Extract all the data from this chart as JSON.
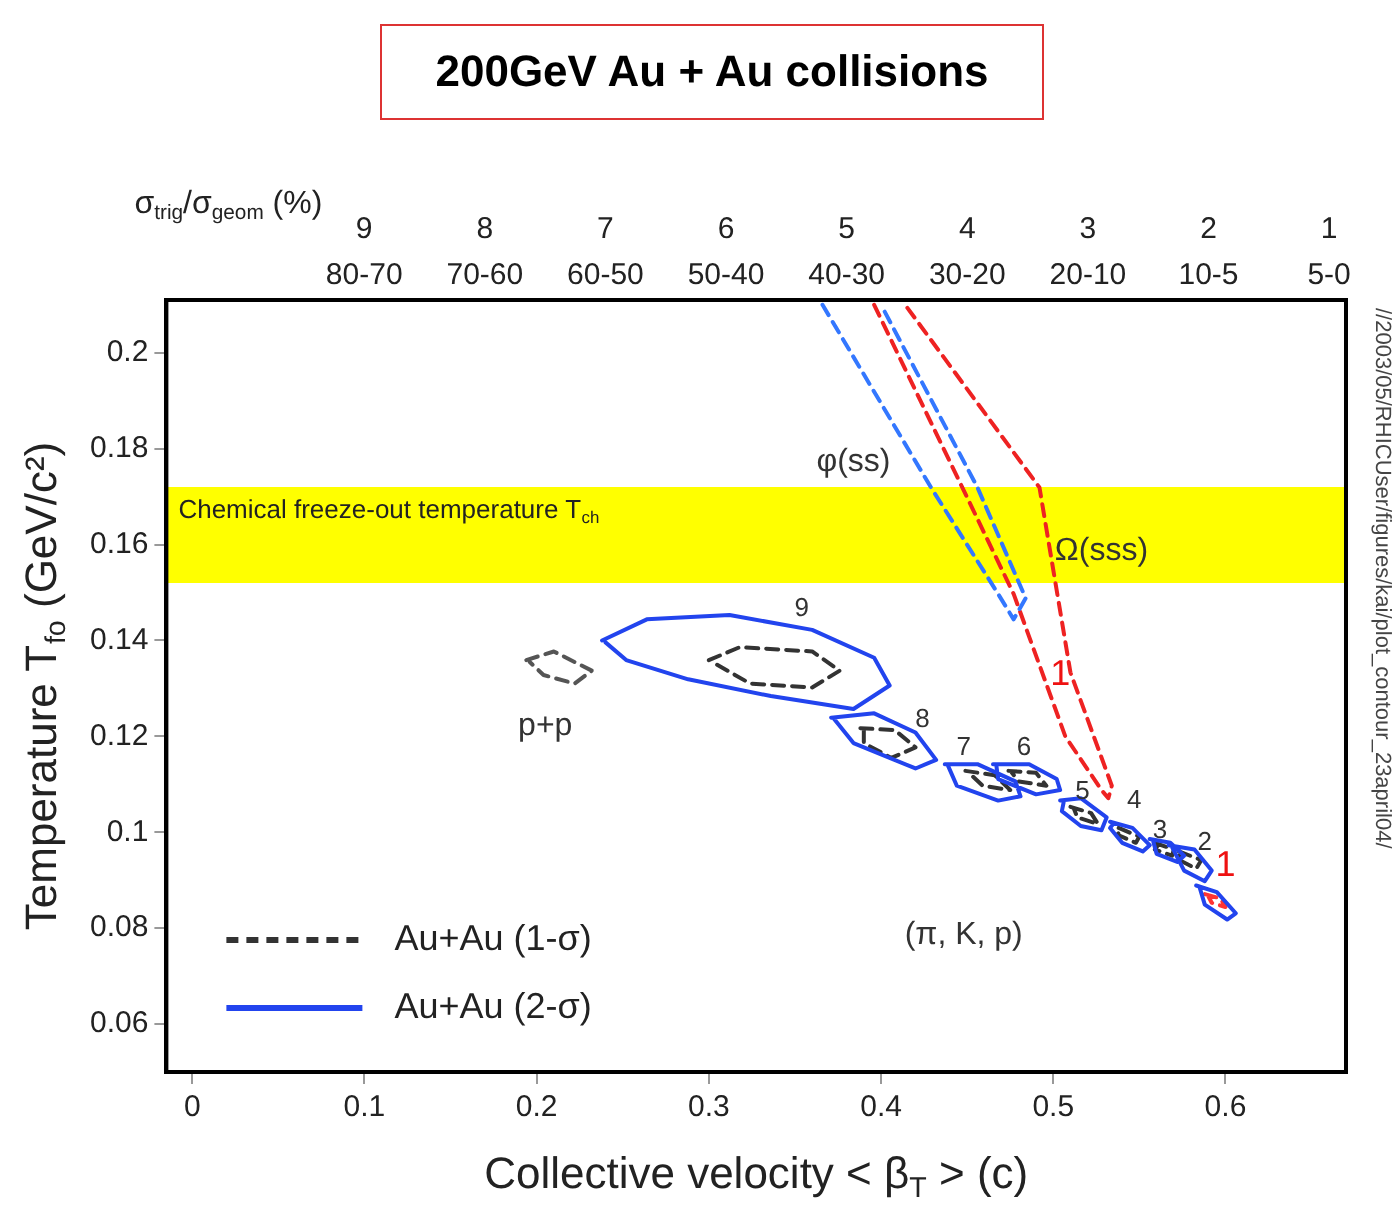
{
  "chart_data": {
    "type": "line",
    "title": "200GeV Au + Au collisions",
    "xlabel": "Collective velocity < β$_{T}$ > (c)",
    "ylabel": "Temperature T$_{fo}$ (GeV/c²)",
    "x2label": "σ$_{trig}$/σ$_{geom}$ (%)",
    "xlim": [
      -0.015,
      0.67
    ],
    "xticks": [
      0,
      0.1,
      0.2,
      0.3,
      0.4,
      0.5,
      0.6
    ],
    "ylim": [
      0.05,
      0.211
    ],
    "yticks": [
      0.06,
      0.08,
      0.1,
      0.12,
      0.14,
      0.16,
      0.18,
      0.2
    ],
    "x2lim": [
      10.64,
      0.86
    ],
    "x2ticks": [
      9,
      8,
      7,
      6,
      5,
      4,
      3,
      2,
      1
    ],
    "grid": false,
    "legend": "bottom left",
    "line_style": "solid",
    "bands": [
      {
        "axis": "y",
        "from": 0.152,
        "to": 0.172,
        "label": "Chemical freeze-out temperature T$_{ch}$",
        "color": "#ffff00"
      }
    ],
    "series": [
      {
        "name": "Au+Au (2-σ)",
        "color": "#2244ee",
        "x": [
          0.238,
          0.264,
          0.312,
          0.36,
          0.396,
          0.405,
          0.384,
          0.336,
          0.288,
          0.252,
          0.24,
          null,
          0.371,
          0.396,
          0.42,
          0.432,
          0.42,
          0.384,
          0.373,
          null,
          0.437,
          0.456,
          0.478,
          0.481,
          0.468,
          0.444,
          0.439,
          null,
          0.465,
          0.486,
          0.502,
          0.504,
          0.49,
          0.468,
          0.467,
          null,
          0.504,
          0.516,
          0.531,
          0.528,
          0.516,
          0.505,
          0.506,
          null,
          0.533,
          0.546,
          0.556,
          0.552,
          0.54,
          0.533,
          0.535,
          null,
          0.556,
          0.568,
          0.576,
          0.572,
          0.56,
          0.558,
          null,
          0.567,
          0.582,
          0.592,
          0.588,
          0.576,
          0.569,
          null,
          0.583,
          0.595,
          0.606,
          0.601,
          0.588,
          0.585
        ],
        "values": [
          0.14,
          0.1444,
          0.1453,
          0.1422,
          0.1364,
          0.1306,
          0.1257,
          0.1284,
          0.1319,
          0.1359,
          0.1396,
          null,
          0.1239,
          0.1248,
          0.1208,
          0.1151,
          0.1133,
          0.1186,
          0.1235,
          null,
          0.1142,
          0.1142,
          0.1106,
          0.1075,
          0.1066,
          0.1097,
          0.1138,
          null,
          0.1142,
          0.1142,
          0.1111,
          0.1088,
          0.1079,
          0.1111,
          0.1138,
          null,
          0.1066,
          0.1071,
          0.1031,
          0.1004,
          0.1013,
          0.1044,
          0.1062,
          null,
          0.1022,
          0.1009,
          0.0973,
          0.096,
          0.0978,
          0.1009,
          0.1018,
          null,
          0.0986,
          0.0978,
          0.0951,
          0.0938,
          0.0955,
          0.0982,
          null,
          0.0973,
          0.0964,
          0.092,
          0.0898,
          0.092,
          0.0969,
          null,
          0.0889,
          0.0875,
          0.0831,
          0.0818,
          0.0849,
          0.0885
        ]
      },
      {
        "name": "Au+Au (1-σ)",
        "color": "#333333",
        "line_style": "dashed",
        "x": [
          0.3,
          0.318,
          0.36,
          0.376,
          0.36,
          0.324,
          0.302,
          null,
          0.388,
          0.408,
          0.42,
          0.406,
          0.39,
          0.39,
          null,
          0.449,
          0.466,
          0.475,
          0.459,
          0.451,
          null,
          0.474,
          0.49,
          0.496,
          0.48,
          0.476,
          null,
          0.51,
          0.522,
          0.526,
          0.514,
          0.512,
          null,
          0.538,
          0.55,
          0.548,
          0.537,
          0.54,
          null,
          0.559,
          0.57,
          0.569,
          0.559,
          0.561,
          null,
          0.573,
          0.586,
          0.583,
          0.571,
          0.575
        ],
        "values": [
          0.1359,
          0.1386,
          0.1377,
          0.1337,
          0.1302,
          0.131,
          0.1355,
          null,
          0.1217,
          0.1213,
          0.1177,
          0.1155,
          0.1186,
          0.1213,
          null,
          0.1128,
          0.1119,
          0.1088,
          0.1097,
          0.1124,
          null,
          0.1128,
          0.1124,
          0.1097,
          0.1106,
          0.1124,
          null,
          0.1053,
          0.104,
          0.1017,
          0.1031,
          0.1049,
          null,
          0.1009,
          0.0991,
          0.0978,
          0.0995,
          0.1005,
          null,
          0.0978,
          0.0964,
          0.0951,
          0.0964,
          0.0974,
          null,
          0.096,
          0.0942,
          0.0924,
          0.0946,
          0.0956
        ]
      },
      {
        "color": "#555555",
        "line_style": "dashed",
        "x": [
          0.194,
          0.21,
          0.232,
          0.222,
          0.204,
          0.196
        ],
        "values": [
          0.1359,
          0.1377,
          0.1337,
          0.131,
          0.1328,
          0.1355
        ]
      },
      {
        "color": "#ff3333",
        "line_style": "dashed",
        "x": [
          0.588,
          0.597,
          0.6,
          0.592,
          0.59
        ],
        "values": [
          0.0871,
          0.0862,
          0.0844,
          0.0853,
          0.0867
        ]
      },
      {
        "color": "#3377ff",
        "line_style": "dashed",
        "x": [
          0.366,
          0.429,
          0.468,
          0.477,
          0.484,
          0.456,
          0.4
        ],
        "values": [
          0.21,
          0.1719,
          0.1497,
          0.1444,
          0.1488,
          0.1719,
          0.21
        ]
      },
      {
        "color": "#ee2222",
        "line_style": "dashed",
        "x": [
          0.396,
          0.477,
          0.507,
          0.528,
          0.532,
          0.534,
          0.51,
          0.492,
          0.414
        ],
        "values": [
          0.21,
          0.1497,
          0.12,
          0.1088,
          0.1071,
          0.1097,
          0.1333,
          0.1719,
          0.21
        ]
      }
    ],
    "annotations": [
      "80-70",
      "70-60",
      "60-50",
      "50-40",
      "40-30",
      "30-20",
      "20-10",
      "10-5",
      "5-0",
      "9",
      "8",
      "7",
      "6",
      "5",
      "4",
      "3",
      "2",
      "1",
      "1",
      "φ(ss)",
      "Ω(sss)",
      "(π, K, p)",
      "p+p",
      "//2003/05/RHICUser/figures/kai/plot_contour_23april04/"
    ]
  }
}
